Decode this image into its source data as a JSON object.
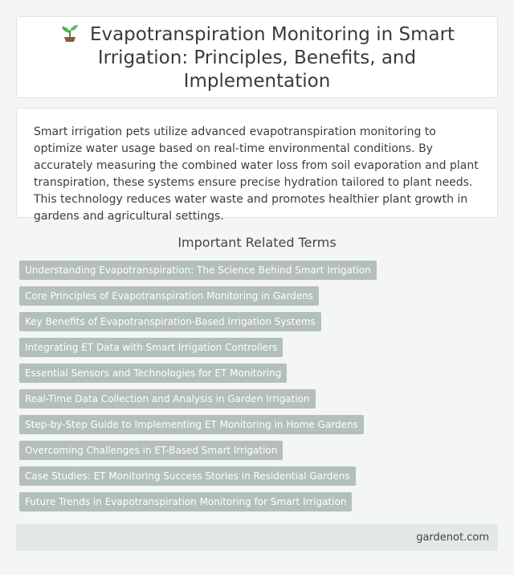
{
  "header": {
    "icon": "seedling-icon",
    "title": "Evapotranspiration Monitoring in Smart Irrigation: Principles, Benefits, and Implementation"
  },
  "intro": {
    "text": "Smart irrigation pets utilize advanced evapotranspiration monitoring to optimize water usage based on real-time environmental conditions. By accurately measuring the combined water loss from soil evaporation and plant transpiration, these systems ensure precise hydration tailored to plant needs. This technology reduces water waste and promotes healthier plant growth in gardens and agricultural settings."
  },
  "related": {
    "heading": "Important Related Terms",
    "terms": [
      "Understanding Evapotranspiration: The Science Behind Smart Irrigation",
      "Core Principles of Evapotranspiration Monitoring in Gardens",
      "Key Benefits of Evapotranspiration-Based Irrigation Systems",
      "Integrating ET Data with Smart Irrigation Controllers",
      "Essential Sensors and Technologies for ET Monitoring",
      "Real-Time Data Collection and Analysis in Garden Irrigation",
      "Step-by-Step Guide to Implementing ET Monitoring in Home Gardens",
      "Overcoming Challenges in ET-Based Smart Irrigation",
      "Case Studies: ET Monitoring Success Stories in Residential Gardens",
      "Future Trends in Evapotranspiration Monitoring for Smart Irrigation"
    ]
  },
  "footer": {
    "site": "gardenot.com"
  },
  "colors": {
    "background": "#f3f6f3",
    "tag": "#b3bfbc",
    "footer": "#e2e8e3"
  }
}
